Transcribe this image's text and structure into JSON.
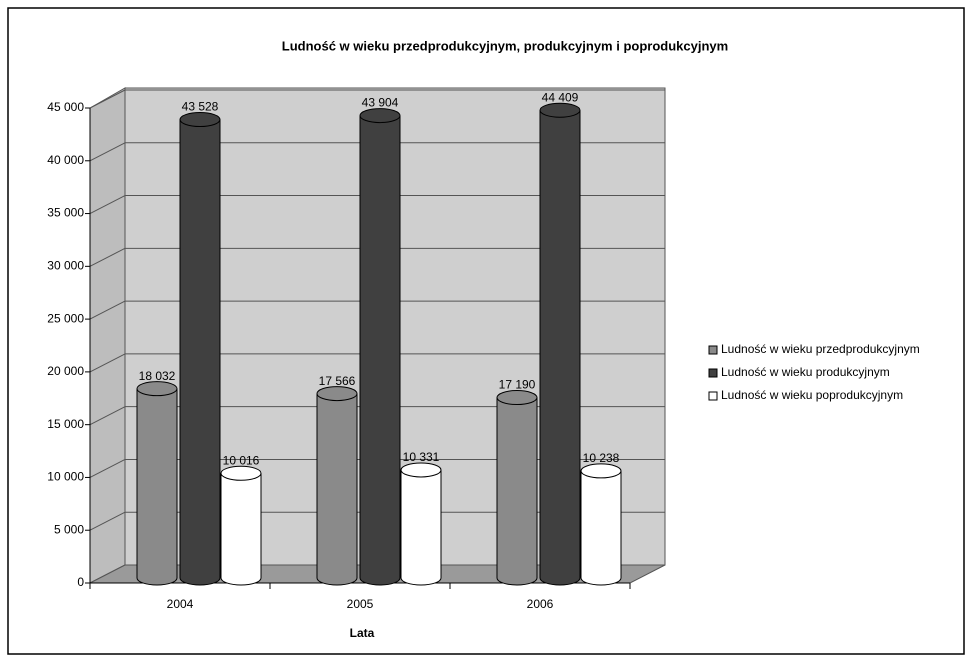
{
  "chart_data": {
    "type": "bar",
    "title": "Ludność w wieku przedprodukcyjnym, produkcyjnym i poprodukcyjnym",
    "x_label": "Lata",
    "categories": [
      "2004",
      "2005",
      "2006"
    ],
    "series": [
      {
        "name": "Ludność w wieku przedprodukcyjnym",
        "color": "#8a8a8a",
        "values": [
          18032,
          17566,
          17190
        ],
        "value_labels": [
          "18 032",
          "17 566",
          "17 190"
        ]
      },
      {
        "name": "Ludność w wieku produkcyjnym",
        "color": "#404040",
        "values": [
          43528,
          43904,
          44409
        ],
        "value_labels": [
          "43 528",
          "43 904",
          "44 409"
        ]
      },
      {
        "name": "Ludność w wieku poprodukcyjnym",
        "color": "#ffffff",
        "values": [
          10016,
          10331,
          10238
        ],
        "value_labels": [
          "10 016",
          "10 331",
          "10 238"
        ]
      }
    ],
    "ylim": [
      0,
      45000
    ],
    "yticks": [
      0,
      {
        "value": 5000,
        "label": "5 000"
      },
      {
        "value": 10000,
        "label": "10 000"
      },
      {
        "value": 15000,
        "label": "15 000"
      },
      {
        "value": 20000,
        "label": "20 000"
      },
      {
        "value": 25000,
        "label": "25 000"
      },
      {
        "value": 30000,
        "label": "30 000"
      },
      {
        "value": 35000,
        "label": "35 000"
      },
      {
        "value": 40000,
        "label": "40 000"
      },
      {
        "value": 45000,
        "label": "45 000"
      }
    ],
    "grid": true,
    "legend": "right"
  }
}
